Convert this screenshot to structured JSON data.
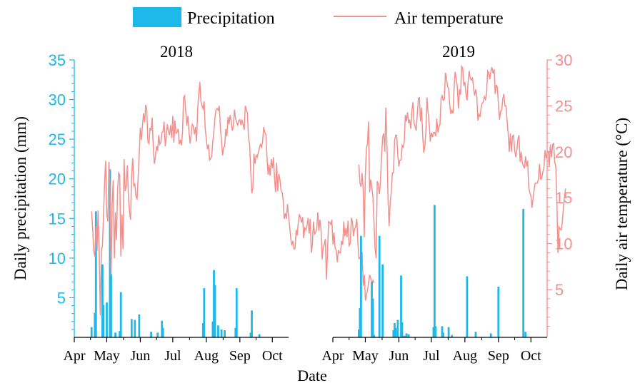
{
  "chart_data": {
    "type": "bar+line",
    "colors": {
      "precip": "#1fb8ea",
      "temp": "#f2908e",
      "axis": "#000000"
    },
    "legend": {
      "precip_label": "Precipitation",
      "temp_label": "Air temperature",
      "placement": "top"
    },
    "xlabel": "Date",
    "ylabel_left": "Daily precipitation (mm)",
    "ylabel_right": "Daily air temperature (°C)",
    "left_axis": {
      "ylim": [
        0,
        35
      ],
      "ticks": [
        5,
        10,
        15,
        20,
        25,
        30,
        35
      ]
    },
    "right_axis": {
      "ylim": [
        -0.2,
        30
      ],
      "ticks": [
        5,
        10,
        15,
        20,
        25,
        30
      ]
    },
    "x_range_doy": [
      91,
      289
    ],
    "month_ticks": [
      {
        "label": "Apr",
        "doy": 91
      },
      {
        "label": "May",
        "doy": 121
      },
      {
        "label": "Jun",
        "doy": 152
      },
      {
        "label": "Jul",
        "doy": 182
      },
      {
        "label": "Aug",
        "doy": 213
      },
      {
        "label": "Sep",
        "doy": 244
      },
      {
        "label": "Oct",
        "doy": 274
      }
    ],
    "panels": [
      {
        "title": "2018",
        "precipitation": [
          {
            "doy": 107,
            "mm": 1.3
          },
          {
            "doy": 110,
            "mm": 3.1
          },
          {
            "doy": 111,
            "mm": 15.9
          },
          {
            "doy": 117,
            "mm": 9.2
          },
          {
            "doy": 118,
            "mm": 4.1
          },
          {
            "doy": 121,
            "mm": 4.4
          },
          {
            "doy": 124,
            "mm": 21.2
          },
          {
            "doy": 125,
            "mm": 8.0
          },
          {
            "doy": 129,
            "mm": 0.6
          },
          {
            "doy": 133,
            "mm": 0.8
          },
          {
            "doy": 134,
            "mm": 5.7
          },
          {
            "doy": 144,
            "mm": 2.3
          },
          {
            "doy": 147,
            "mm": 2.2
          },
          {
            "doy": 151,
            "mm": 2.9
          },
          {
            "doy": 162,
            "mm": 0.7
          },
          {
            "doy": 168,
            "mm": 0.6
          },
          {
            "doy": 172,
            "mm": 2.1
          },
          {
            "doy": 173,
            "mm": 1.2
          },
          {
            "doy": 210,
            "mm": 1.8
          },
          {
            "doy": 211,
            "mm": 6.2
          },
          {
            "doy": 219,
            "mm": 2.0
          },
          {
            "doy": 220,
            "mm": 8.5
          },
          {
            "doy": 221,
            "mm": 6.6
          },
          {
            "doy": 224,
            "mm": 1.5
          },
          {
            "doy": 227,
            "mm": 1.0
          },
          {
            "doy": 230,
            "mm": 0.9
          },
          {
            "doy": 240,
            "mm": 1.2
          },
          {
            "doy": 241,
            "mm": 6.2
          },
          {
            "doy": 254,
            "mm": 0.6
          },
          {
            "doy": 255,
            "mm": 3.4
          },
          {
            "doy": 262,
            "mm": 0.4
          }
        ],
        "temperature": {
          "start_doy": 107,
          "values": [
            13.5,
            11.5,
            9.2,
            8.6,
            11.9,
            9.2,
            13.6,
            9.3,
            2.2,
            9.1,
            9.8,
            13.0,
            16.6,
            19.0,
            13.2,
            12.4,
            18.9,
            15.8,
            6.5,
            14.2,
            16.9,
            8.4,
            13.4,
            10.4,
            15.8,
            17.7,
            17.5,
            8.6,
            13.2,
            9.4,
            19.2,
            15.7,
            16.3,
            18.5,
            15.1,
            13.5,
            12.6,
            17.4,
            19.3,
            16.3,
            16.5,
            15.1,
            14.9,
            17.2,
            19.7,
            22.6,
            21.3,
            22.9,
            24.2,
            23.2,
            25.1,
            24.6,
            21.1,
            20.9,
            22.6,
            22.3,
            23.7,
            20.4,
            18.7,
            19.5,
            20.6,
            20.1,
            21.8,
            20.8,
            21.0,
            22.1,
            22.2,
            23.3,
            20.6,
            21.7,
            23.0,
            22.2,
            21.8,
            22.9,
            21.5,
            23.9,
            21.0,
            23.4,
            22.0,
            22.1,
            22.5,
            20.8,
            21.3,
            20.7,
            22.1,
            25.9,
            26.1,
            24.3,
            22.8,
            23.9,
            22.2,
            20.9,
            21.9,
            23.0,
            22.8,
            21.9,
            22.7,
            21.1,
            24.6,
            26.2,
            27.6,
            25.5,
            25.0,
            24.7,
            25.5,
            22.5,
            21.4,
            20.3,
            20.8,
            19.1,
            19.3,
            19.5,
            21.1,
            22.3,
            23.8,
            24.6,
            24.7,
            24.5,
            25.0,
            22.7,
            21.2,
            19.6,
            20.5,
            20.6,
            22.5,
            21.7,
            23.8,
            23.0,
            24.0,
            23.3,
            22.3,
            22.8,
            24.6,
            23.6,
            23.2,
            22.9,
            23.4,
            23.5,
            22.9,
            23.5,
            22.9,
            22.4,
            25.0,
            24.6,
            24.2,
            21.5,
            20.8,
            17.9,
            15.5,
            16.0,
            19.8,
            18.7,
            19.6,
            19.4,
            19.9,
            20.4,
            20.8,
            20.5,
            21.1,
            22.7,
            22.1,
            21.9,
            19.6,
            17.5,
            18.6,
            17.4,
            19.2,
            18.2,
            19.4,
            17.1,
            15.6,
            18.8,
            15.7,
            17.6,
            17.0,
            15.8,
            15.6,
            14.8,
            12.7,
            13.3,
            12.7,
            14.3,
            13.0,
            11.9,
            10.6,
            9.8,
            10.3,
            9.4,
            9.5,
            11.5,
            10.9,
            12.3,
            13.2,
            12.8,
            12.3,
            12.9,
            10.6,
            11.7,
            11.5,
            12.0,
            12.8,
            11.1,
            12.7,
            9.0,
            9.9,
            12.4,
            11.0,
            11.3,
            11.5,
            13.4,
            11.4,
            12.6,
            11.5,
            8.3,
            9.6,
            9.9,
            10.5,
            6.1,
            9.0,
            12.4,
            12.3,
            12.1,
            12.6,
            9.9,
            11.2,
            9.5,
            9.3,
            8.0,
            9.3,
            9.0,
            9.0,
            10.3,
            9.9,
            12.4,
            10.8,
            11.7,
            10.7,
            12.5,
            9.8,
            10.0,
            12.8,
            12.4,
            10.8,
            11.6,
            11.8,
            12.7,
            10.2,
            8.4,
            8.5,
            7.8,
            9.1,
            5.4,
            6.6,
            3.8,
            4.4,
            5.0,
            5.8,
            6.6,
            6.2,
            5.6,
            6.0,
            5.7
          ]
        }
      },
      {
        "title": "2019",
        "precipitation": [
          {
            "doy": 115,
            "mm": 1.0
          },
          {
            "doy": 116,
            "mm": 3.7
          },
          {
            "doy": 117,
            "mm": 12.8
          },
          {
            "doy": 127,
            "mm": 7.0
          },
          {
            "doy": 128,
            "mm": 4.9
          },
          {
            "doy": 129,
            "mm": 0.3
          },
          {
            "doy": 134,
            "mm": 12.8
          },
          {
            "doy": 137,
            "mm": 9.2
          },
          {
            "doy": 147,
            "mm": 0.9
          },
          {
            "doy": 148,
            "mm": 1.8
          },
          {
            "doy": 149,
            "mm": 1.2
          },
          {
            "doy": 151,
            "mm": 2.2
          },
          {
            "doy": 154,
            "mm": 7.8
          },
          {
            "doy": 155,
            "mm": 1.9
          },
          {
            "doy": 157,
            "mm": 0.2
          },
          {
            "doy": 159,
            "mm": 0.5
          },
          {
            "doy": 161,
            "mm": 0.4
          },
          {
            "doy": 184,
            "mm": 1.3
          },
          {
            "doy": 185,
            "mm": 16.7
          },
          {
            "doy": 186,
            "mm": 1.4
          },
          {
            "doy": 192,
            "mm": 1.4
          },
          {
            "doy": 193,
            "mm": 0.6
          },
          {
            "doy": 198,
            "mm": 1.3
          },
          {
            "doy": 201,
            "mm": 0.3
          },
          {
            "doy": 215,
            "mm": 7.7
          },
          {
            "doy": 223,
            "mm": 0.7
          },
          {
            "doy": 237,
            "mm": 0.5
          },
          {
            "doy": 244,
            "mm": 6.4
          },
          {
            "doy": 267,
            "mm": 16.2
          },
          {
            "doy": 269,
            "mm": 0.7
          }
        ],
        "temperature": {
          "start_doy": 115,
          "values": [
            18.6,
            16.6,
            16.2,
            17.7,
            16.0,
            10.7,
            17.5,
            20.4,
            20.9,
            23.3,
            15.6,
            17.0,
            16.2,
            15.1,
            12.2,
            9.5,
            8.4,
            16.8,
            16.5,
            15.4,
            16.9,
            19.6,
            21.6,
            22.0,
            20.0,
            24.8,
            20.6,
            14.7,
            11.9,
            14.5,
            15.7,
            17.7,
            17.7,
            21.2,
            21.8,
            21.8,
            19.6,
            18.4,
            19.1,
            19.1,
            20.7,
            20.5,
            21.1,
            24.0,
            23.3,
            24.3,
            23.1,
            23.5,
            22.5,
            24.4,
            25.4,
            23.2,
            22.7,
            22.3,
            24.1,
            25.8,
            25.9,
            23.3,
            24.8,
            21.7,
            19.9,
            20.6,
            22.3,
            25.9,
            24.3,
            23.1,
            21.1,
            22.1,
            21.6,
            22.1,
            22.1,
            21.7,
            23.6,
            22.1,
            22.7,
            23.0,
            25.8,
            26.1,
            25.6,
            25.7,
            28.6,
            28.0,
            27.1,
            26.9,
            25.1,
            24.1,
            24.5,
            24.2,
            26.9,
            28.7,
            28.0,
            27.1,
            24.7,
            26.8,
            26.2,
            29.3,
            29.1,
            27.2,
            27.6,
            26.3,
            25.6,
            27.7,
            28.8,
            28.0,
            27.8,
            28.1,
            26.9,
            26.1,
            26.8,
            26.1,
            23.4,
            24.1,
            23.8,
            24.8,
            25.3,
            25.4,
            26.0,
            25.7,
            26.3,
            28.8,
            28.6,
            27.9,
            28.8,
            29.2,
            28.5,
            29.0,
            26.3,
            27.3,
            27.0,
            25.2,
            23.5,
            24.4,
            24.5,
            25.8,
            26.3,
            25.0,
            25.0,
            23.4,
            21.9,
            20.0,
            22.0,
            20.0,
            21.7,
            21.8,
            20.2,
            19.4,
            20.2,
            21.4,
            21.8,
            18.9,
            20.0,
            18.8,
            18.5,
            18.2,
            19.5,
            18.4,
            19.0,
            16.2,
            15.5,
            15.2,
            13.9,
            15.0,
            15.9,
            16.6,
            16.6,
            16.6,
            17.1,
            18.7,
            17.0,
            17.1,
            17.8,
            18.2,
            20.2,
            19.3,
            19.8,
            20.1,
            18.3,
            20.8,
            19.4,
            20.8,
            20.9,
            18.9,
            18.4,
            14.7,
            9.0,
            11.8,
            11.6,
            11.5,
            12.3,
            13.9,
            15.0,
            16.0
          ]
        }
      }
    ]
  }
}
